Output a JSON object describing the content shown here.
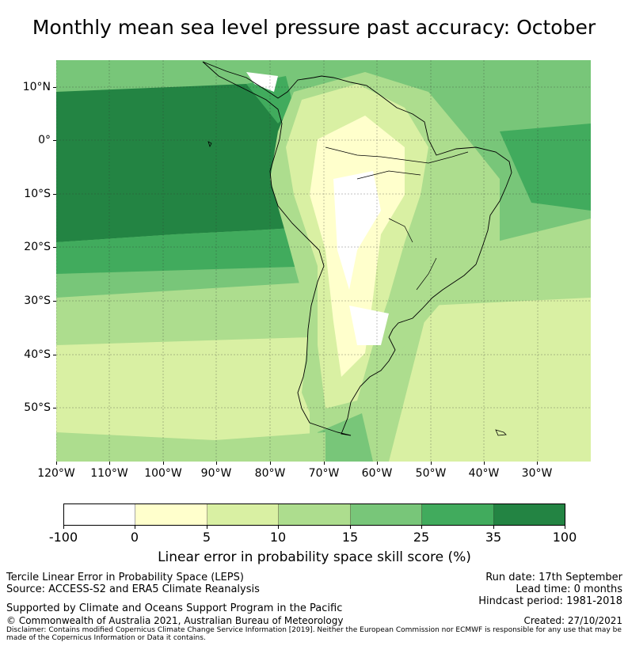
{
  "title": "Monthly mean sea level pressure past accuracy: October",
  "map": {
    "type": "filled-contour-map",
    "region": "South America",
    "lon_range": [
      "120°W",
      "20°W"
    ],
    "lat_range": [
      "60°S",
      "15°N"
    ],
    "lat_ticks": [
      "10°N",
      "0°",
      "10°S",
      "20°S",
      "30°S",
      "40°S",
      "50°S"
    ],
    "lon_ticks": [
      "120°W",
      "110°W",
      "100°W",
      "90°W",
      "80°W",
      "70°W",
      "60°W",
      "50°W",
      "40°W",
      "30°W"
    ],
    "gridlines": true
  },
  "colorbar": {
    "ticks": [
      "-100",
      "0",
      "5",
      "10",
      "15",
      "25",
      "35",
      "100"
    ],
    "colors": [
      "#ffffff",
      "#ffffcc",
      "#d9f0a3",
      "#addd8e",
      "#78c679",
      "#41ab5d",
      "#238443"
    ],
    "label": "Linear error in probability space skill score (%)"
  },
  "footer": {
    "left_line1": "Tercile Linear Error in Probability Space (LEPS)",
    "left_line2": "Source: ACCESS-S2 and ERA5 Climate Reanalysis",
    "support": "Supported by Climate and Oceans Support Program in the Pacific",
    "copyright": "© Commonwealth of Australia 2021, Australian Bureau of Meteorology",
    "run_date": "Run date: 17th September",
    "lead_time": "Lead time: 0 months",
    "hindcast": "Hindcast period: 1981-2018",
    "created": "Created: 27/10/2021",
    "disclaimer": "Disclaimer: Contains modified Copernicus Climate Change Service Information [2019]. Neither the European Commission nor ECMWF is responsible for any use that may be made of the Copernicus Information or Data it contains."
  }
}
